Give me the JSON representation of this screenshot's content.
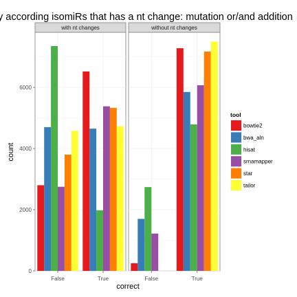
{
  "chart_data": {
    "type": "bar",
    "title": "y according isomiRs that has a nt change: mutation or/and addition",
    "xlabel": "correct",
    "ylabel": "count",
    "ylim": [
      0,
      7800
    ],
    "y_ticks": [
      0,
      2000,
      4000,
      6000
    ],
    "categories": [
      "False",
      "True"
    ],
    "legend": {
      "title": "tool",
      "position": "right"
    },
    "grid": true,
    "panels": [
      {
        "label": "with nt changes",
        "series": [
          {
            "name": "bowtie2",
            "color": "#E41A1C",
            "values": [
              2800,
              6520
            ]
          },
          {
            "name": "bwa_aln",
            "color": "#377EB8",
            "values": [
              4700,
              4650
            ]
          },
          {
            "name": "hisat",
            "color": "#4DAF4A",
            "values": [
              7350,
              1980
            ]
          },
          {
            "name": "srnamapper",
            "color": "#984EA3",
            "values": [
              2750,
              5380
            ]
          },
          {
            "name": "star",
            "color": "#FF7F00",
            "values": [
              3800,
              5330
            ]
          },
          {
            "name": "tailor",
            "color": "#FFFF33",
            "values": [
              4580,
              4730
            ]
          }
        ]
      },
      {
        "label": "without nt changes",
        "series": [
          {
            "name": "bowtie2",
            "color": "#E41A1C",
            "values": [
              250,
              7280
            ]
          },
          {
            "name": "bwa_aln",
            "color": "#377EB8",
            "values": [
              1700,
              5850
            ]
          },
          {
            "name": "hisat",
            "color": "#4DAF4A",
            "values": [
              2740,
              4790
            ]
          },
          {
            "name": "srnamapper",
            "color": "#984EA3",
            "values": [
              1220,
              6070
            ]
          },
          {
            "name": "star",
            "color": "#FF7F00",
            "values": [
              0,
              7170
            ]
          },
          {
            "name": "tailor",
            "color": "#FFFF33",
            "values": [
              0,
              7500
            ]
          }
        ]
      }
    ]
  }
}
